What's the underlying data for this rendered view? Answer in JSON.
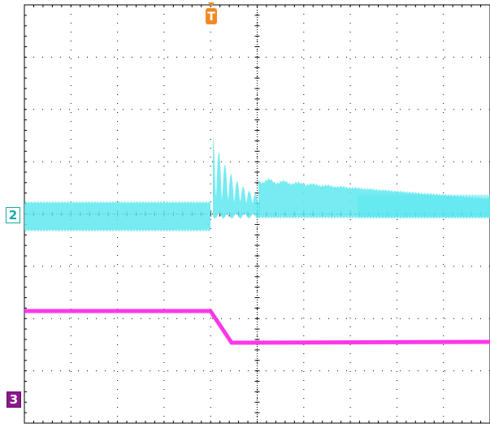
{
  "scope": {
    "trigger": {
      "marker_text": "T",
      "color": "#f08a24"
    },
    "channels": [
      {
        "id": "ch2",
        "label": "2",
        "color": "#5ee8f0",
        "label_color": "#1aa8a8"
      },
      {
        "id": "ch3",
        "label": "3",
        "color": "#ff2ee8",
        "label_color": "#8a1a8a"
      }
    ],
    "grid": {
      "divisions_x": 10,
      "divisions_y": 8,
      "minor_ticks_per_division": 5
    }
  }
}
